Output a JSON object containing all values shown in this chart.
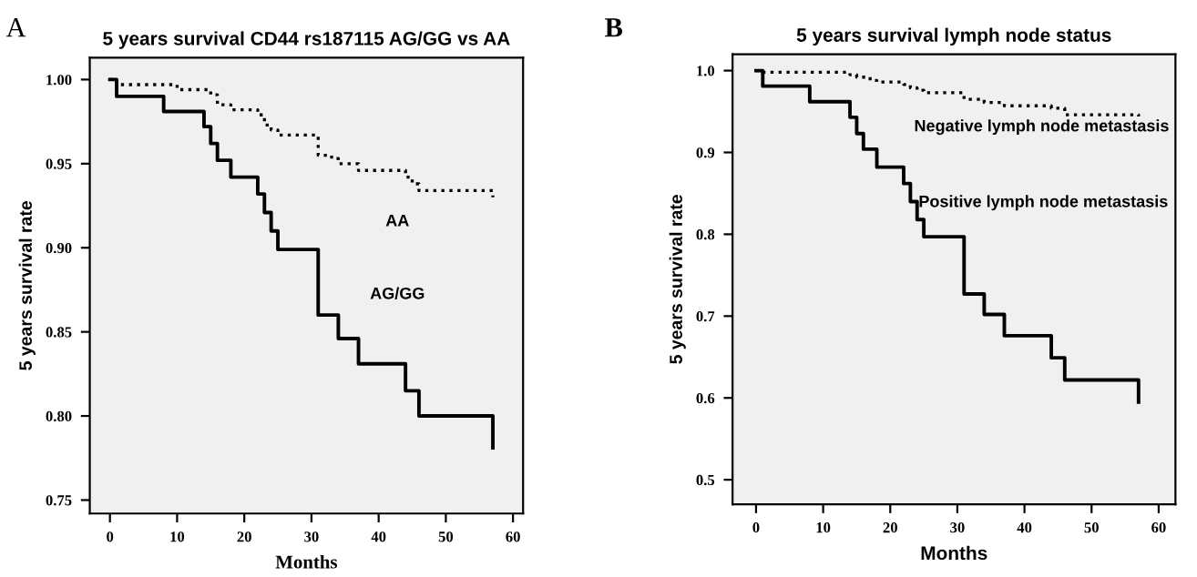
{
  "chart_data": [
    {
      "type": "step",
      "title": "5 years survival CD44 rs187115 AG/GG vs AA",
      "xlabel": "Months",
      "ylabel": "5 years survival rate",
      "annotations": [
        "A"
      ],
      "xlim": [
        -3,
        61.5
      ],
      "ylim": [
        0.742,
        1.013
      ],
      "xticks": [
        0,
        10,
        20,
        30,
        40,
        50,
        60
      ],
      "yticks": [
        {
          "value": 0.75,
          "label": "0.75"
        },
        {
          "value": 0.8,
          "label": "0.80"
        },
        {
          "value": 0.85,
          "label": "0.85"
        },
        {
          "value": 0.9,
          "label": "0.90"
        },
        {
          "value": 0.95,
          "label": "0.95"
        },
        {
          "value": 1.0,
          "label": "1.00"
        }
      ],
      "grid": false,
      "legend": false,
      "series": [
        {
          "name": "AA",
          "color": "#000000",
          "line_style": "dotted",
          "x": [
            0,
            1,
            9,
            10,
            15,
            16,
            18,
            22,
            23,
            24,
            25,
            31,
            33,
            34,
            37,
            44,
            45,
            46,
            57,
            57
          ],
          "values": [
            1.0,
            0.997,
            0.997,
            0.994,
            0.991,
            0.985,
            0.982,
            0.979,
            0.973,
            0.97,
            0.967,
            0.955,
            0.953,
            0.95,
            0.946,
            0.942,
            0.938,
            0.934,
            0.934,
            0.93
          ]
        },
        {
          "name": "AG/GG",
          "color": "#000000",
          "line_style": "solid",
          "x": [
            0,
            1,
            8,
            14,
            15,
            16,
            18,
            22,
            23,
            24,
            25,
            31,
            34,
            37,
            44,
            46,
            57,
            57
          ],
          "values": [
            1.0,
            0.99,
            0.981,
            0.972,
            0.962,
            0.952,
            0.942,
            0.932,
            0.921,
            0.91,
            0.899,
            0.86,
            0.846,
            0.831,
            0.815,
            0.8,
            0.8,
            0.781
          ]
        }
      ]
    },
    {
      "type": "step",
      "title": "5 years survival lymph node status",
      "xlabel": "Months",
      "ylabel": "5 years survival rate",
      "annotations": [
        "B"
      ],
      "xlim": [
        -3.5,
        62.5
      ],
      "ylim": [
        0.47,
        1.02
      ],
      "xticks": [
        0,
        10,
        20,
        30,
        40,
        50,
        60
      ],
      "yticks": [
        0.5,
        0.6,
        0.7,
        0.8,
        0.9,
        {
          "value": 1.0,
          "label": "1.0"
        }
      ],
      "grid": false,
      "legend": false,
      "series": [
        {
          "name": "Negative lymph node metastasis",
          "color": "#000000",
          "line_style": "dotted",
          "x": [
            0,
            1,
            14,
            15,
            17,
            18,
            22,
            23,
            24,
            25,
            31,
            34,
            37,
            44,
            46,
            57,
            57
          ],
          "values": [
            1.0,
            0.998,
            0.995,
            0.992,
            0.988,
            0.986,
            0.983,
            0.979,
            0.976,
            0.973,
            0.965,
            0.961,
            0.957,
            0.954,
            0.946,
            0.946,
            0.944
          ]
        },
        {
          "name": "Positive lymph node metastasis",
          "color": "#000000",
          "line_style": "solid",
          "x": [
            0,
            1,
            8,
            14,
            15,
            16,
            18,
            22,
            23,
            24,
            25,
            31,
            34,
            37,
            44,
            46,
            57,
            57
          ],
          "values": [
            1.0,
            0.981,
            0.962,
            0.943,
            0.923,
            0.904,
            0.882,
            0.862,
            0.84,
            0.818,
            0.797,
            0.727,
            0.702,
            0.676,
            0.649,
            0.622,
            0.622,
            0.595
          ]
        }
      ]
    }
  ]
}
